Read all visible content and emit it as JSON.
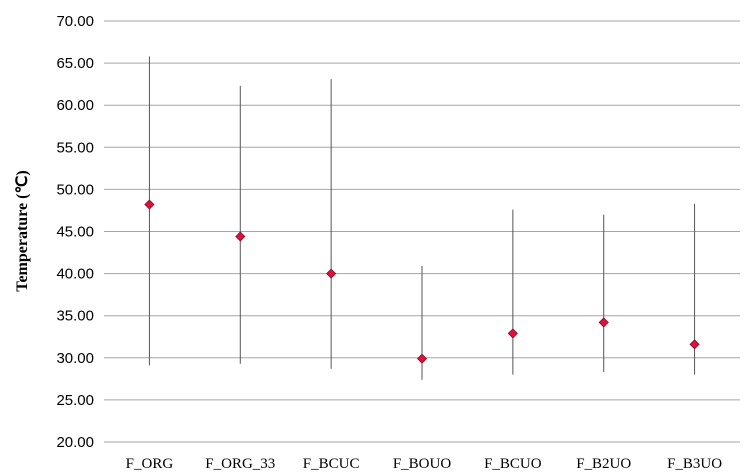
{
  "chart_data": {
    "type": "scatter",
    "subtype": "high-low-marker",
    "title": "",
    "xlabel": "",
    "ylabel": "Temperature (℃)",
    "ylim": [
      20,
      70
    ],
    "ytick_step": 5,
    "ytick_labels": [
      "20.00",
      "25.00",
      "30.00",
      "35.00",
      "40.00",
      "45.00",
      "50.00",
      "55.00",
      "60.00",
      "65.00",
      "70.00"
    ],
    "grid": true,
    "legend": "none",
    "categories": [
      "F_ORG",
      "F_ORG_33",
      "F_BCUC",
      "F_BOUO",
      "F_BCUO",
      "F_B2UO",
      "F_B3UO"
    ],
    "series": [
      {
        "values": [
          48.2,
          44.4,
          40.0,
          29.9,
          32.9,
          34.2,
          31.6
        ]
      },
      {
        "role": "high",
        "values": [
          65.8,
          62.3,
          63.1,
          40.9,
          47.6,
          47.0,
          48.3
        ]
      },
      {
        "role": "low",
        "values": [
          29.1,
          29.3,
          28.7,
          27.4,
          28.0,
          28.3,
          28.0
        ]
      }
    ],
    "colors": {
      "marker": "#e0103a",
      "marker_edge": "#8b0a2a",
      "range_line": "#555555",
      "grid": "#a6a6a6"
    }
  }
}
